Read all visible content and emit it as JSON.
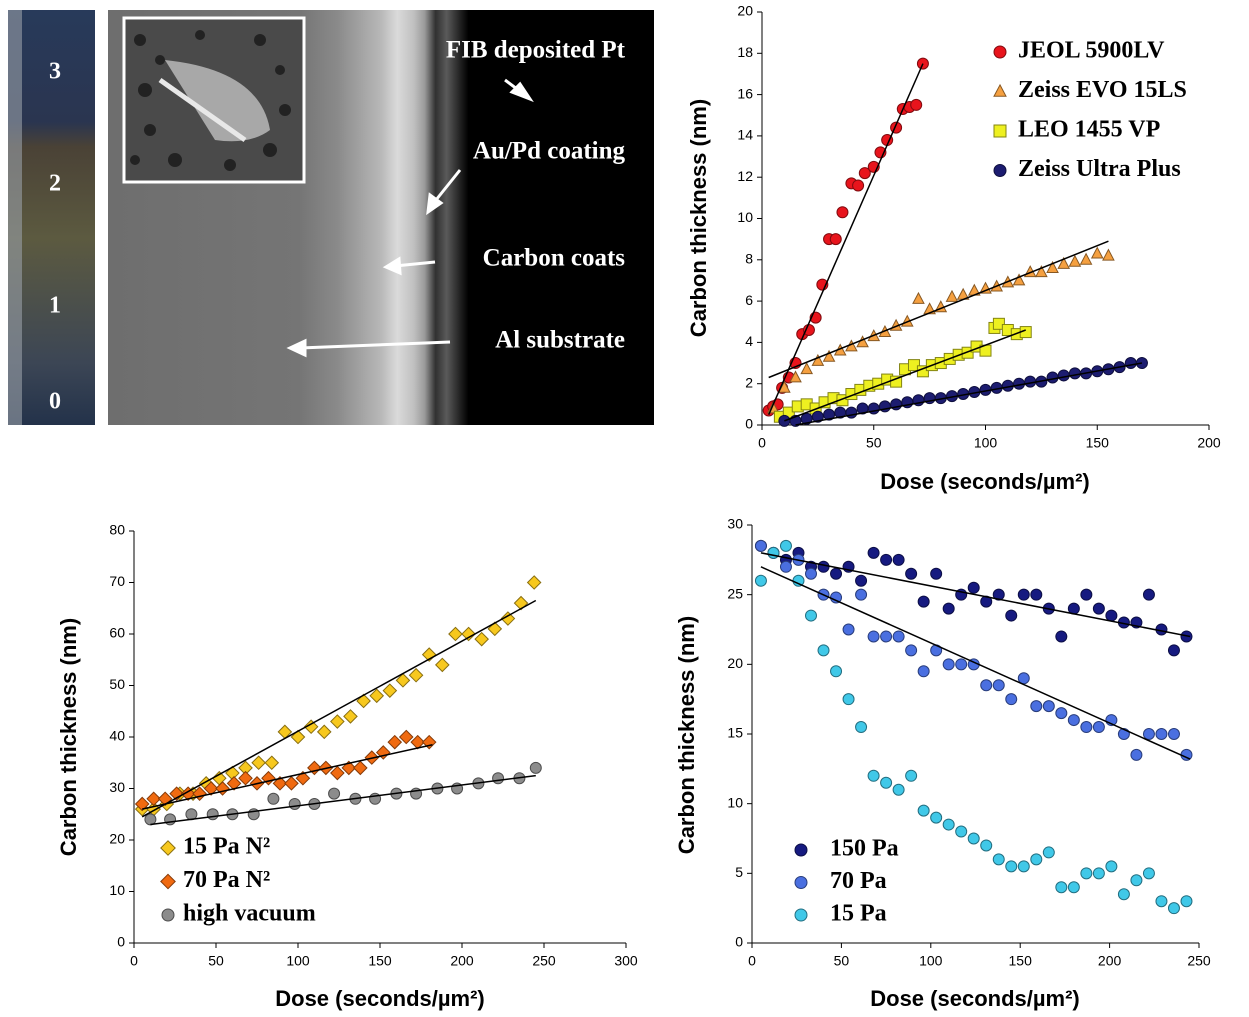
{
  "image_panel": {
    "strip_labels": [
      "3",
      "2",
      "1",
      "0"
    ],
    "annotations": [
      "FIB deposited Pt",
      "Au/Pd coating",
      "Carbon coats",
      "Al substrate"
    ]
  },
  "chart_data": [
    {
      "type": "scatter",
      "xlabel": "Dose (seconds/µm²)",
      "ylabel": "Carbon thickness (nm)",
      "xlim": [
        0,
        200
      ],
      "ylim": [
        0,
        20
      ],
      "xticks": [
        0,
        50,
        100,
        150,
        200
      ],
      "yticks": [
        0,
        2,
        4,
        6,
        8,
        10,
        12,
        14,
        16,
        18,
        20
      ],
      "grid": false,
      "legend": "upper right",
      "series": [
        {
          "name": "JEOL 5900LV",
          "color": "#e8141c",
          "marker": "circle",
          "x": [
            3,
            5,
            7,
            9,
            12,
            15,
            18,
            21,
            24,
            27,
            30,
            33,
            36,
            40,
            43,
            46,
            50,
            53,
            56,
            60,
            63,
            66,
            69,
            72
          ],
          "values": [
            0.7,
            0.9,
            1.0,
            1.8,
            2.3,
            3.0,
            4.4,
            4.6,
            5.2,
            6.8,
            9.0,
            9.0,
            10.3,
            11.7,
            11.6,
            12.2,
            12.5,
            13.2,
            13.8,
            14.4,
            15.3,
            15.4,
            15.5,
            17.5
          ],
          "trend_x": [
            3,
            72
          ],
          "trend_y": [
            0.5,
            17.5
          ]
        },
        {
          "name": "Zeiss EVO 15LS",
          "color": "#f5a040",
          "marker": "triangle",
          "x": [
            5,
            10,
            15,
            20,
            25,
            30,
            35,
            40,
            45,
            50,
            55,
            60,
            65,
            70,
            75,
            80,
            85,
            90,
            95,
            100,
            105,
            110,
            115,
            120,
            125,
            130,
            135,
            140,
            145,
            150,
            155
          ],
          "values": [
            0.8,
            1.8,
            2.3,
            2.7,
            3.1,
            3.3,
            3.6,
            3.8,
            4.0,
            4.3,
            4.5,
            4.8,
            5.0,
            6.1,
            5.6,
            5.7,
            6.2,
            6.3,
            6.5,
            6.6,
            6.7,
            6.9,
            7.0,
            7.4,
            7.4,
            7.6,
            7.8,
            7.9,
            8.0,
            8.3,
            8.2
          ],
          "trend_x": [
            3,
            155
          ],
          "trend_y": [
            2.3,
            8.9
          ]
        },
        {
          "name": "LEO 1455 VP",
          "color": "#eef020",
          "marker": "square",
          "x": [
            8,
            12,
            16,
            20,
            24,
            28,
            32,
            36,
            40,
            44,
            48,
            52,
            56,
            60,
            64,
            68,
            72,
            76,
            80,
            84,
            88,
            92,
            96,
            100,
            104,
            106,
            110,
            114,
            118
          ],
          "values": [
            0.4,
            0.6,
            0.9,
            1.0,
            0.8,
            1.1,
            1.3,
            1.2,
            1.5,
            1.7,
            1.9,
            2.0,
            2.2,
            2.1,
            2.7,
            2.9,
            2.6,
            2.9,
            3.0,
            3.2,
            3.4,
            3.5,
            3.8,
            3.6,
            4.7,
            4.9,
            4.6,
            4.4,
            4.5
          ],
          "trend_x": [
            10,
            118
          ],
          "trend_y": [
            0.2,
            4.6
          ]
        },
        {
          "name": "Zeiss Ultra Plus",
          "color": "#1c1c70",
          "marker": "circle",
          "x": [
            10,
            15,
            20,
            25,
            30,
            35,
            40,
            45,
            50,
            55,
            60,
            65,
            70,
            75,
            80,
            85,
            90,
            95,
            100,
            105,
            110,
            115,
            120,
            125,
            130,
            135,
            140,
            145,
            150,
            155,
            160,
            165,
            170
          ],
          "values": [
            0.2,
            0.2,
            0.3,
            0.4,
            0.5,
            0.6,
            0.6,
            0.8,
            0.8,
            0.9,
            1.0,
            1.1,
            1.2,
            1.3,
            1.3,
            1.4,
            1.5,
            1.6,
            1.7,
            1.8,
            1.9,
            2.0,
            2.1,
            2.1,
            2.3,
            2.4,
            2.5,
            2.5,
            2.6,
            2.7,
            2.8,
            3.0,
            3.0
          ],
          "trend_x": [
            15,
            170
          ],
          "trend_y": [
            0,
            3.0
          ]
        }
      ]
    },
    {
      "type": "scatter",
      "xlabel": "Dose (seconds/µm²)",
      "ylabel": "Carbon thickness (nm)",
      "xlim": [
        0,
        300
      ],
      "ylim": [
        0,
        80
      ],
      "xticks": [
        0,
        50,
        100,
        150,
        200,
        250,
        300
      ],
      "yticks": [
        0,
        10,
        20,
        30,
        40,
        50,
        60,
        70,
        80
      ],
      "grid": false,
      "legend": "lower left",
      "series": [
        {
          "name": "15 Pa N²",
          "color": "#f7c81e",
          "marker": "diamond",
          "x": [
            5,
            12,
            20,
            28,
            36,
            44,
            52,
            60,
            68,
            76,
            84,
            92,
            100,
            108,
            116,
            124,
            132,
            140,
            148,
            156,
            164,
            172,
            180,
            188,
            196,
            204,
            212,
            220,
            228,
            236,
            244
          ],
          "values": [
            26,
            26,
            27,
            29,
            29,
            31,
            32,
            33,
            34,
            35,
            35,
            41,
            40,
            42,
            41,
            43,
            44,
            47,
            48,
            49,
            51,
            52,
            56,
            54,
            60,
            60,
            59,
            61,
            63,
            66,
            70
          ],
          "trend_x": [
            5,
            245
          ],
          "trend_y": [
            24.5,
            66.5
          ]
        },
        {
          "name": "70 Pa N²",
          "color": "#f06a10",
          "marker": "diamond",
          "x": [
            5,
            12,
            19,
            26,
            33,
            40,
            47,
            54,
            61,
            68,
            75,
            82,
            89,
            96,
            103,
            110,
            117,
            124,
            131,
            138,
            145,
            152,
            159,
            166,
            173,
            180
          ],
          "values": [
            27,
            28,
            28,
            29,
            29,
            29,
            30,
            30,
            31,
            32,
            31,
            32,
            31,
            31,
            32,
            34,
            34,
            33,
            34,
            34,
            36,
            37,
            39,
            40,
            39,
            39
          ],
          "trend_x": [
            5,
            182
          ],
          "trend_y": [
            26,
            38.5
          ]
        },
        {
          "name": "high vacuum",
          "color": "#8c8c8c",
          "marker": "circle",
          "x": [
            10,
            22,
            35,
            48,
            60,
            73,
            85,
            98,
            110,
            122,
            135,
            147,
            160,
            172,
            185,
            197,
            210,
            222,
            235,
            245
          ],
          "values": [
            24,
            24,
            25,
            25,
            25,
            25,
            28,
            27,
            27,
            29,
            28,
            28,
            29,
            29,
            30,
            30,
            31,
            32,
            32,
            34
          ],
          "trend_x": [
            10,
            245
          ],
          "trend_y": [
            23,
            32.5
          ]
        }
      ]
    },
    {
      "type": "scatter",
      "xlabel": "Dose (seconds/µm²)",
      "ylabel": "Carbon thickness (nm)",
      "xlim": [
        0,
        250
      ],
      "ylim": [
        0,
        30
      ],
      "xticks": [
        0,
        50,
        100,
        150,
        200,
        250
      ],
      "yticks": [
        0,
        5,
        10,
        15,
        20,
        25,
        30
      ],
      "grid": false,
      "legend": "lower left",
      "series": [
        {
          "name": "150 Pa",
          "color": "#161a80",
          "marker": "circle",
          "x": [
            5,
            12,
            19,
            26,
            33,
            40,
            47,
            54,
            61,
            68,
            75,
            82,
            89,
            96,
            103,
            110,
            117,
            124,
            131,
            138,
            145,
            152,
            159,
            166,
            173,
            180,
            187,
            194,
            201,
            208,
            215,
            222,
            229,
            236,
            243
          ],
          "values": [
            28.5,
            28,
            27.5,
            28,
            27,
            27,
            26.5,
            27,
            26,
            28,
            27.5,
            27.5,
            26.5,
            24.5,
            26.5,
            24,
            25,
            25.5,
            24.5,
            25,
            23.5,
            25,
            25,
            24,
            22,
            24,
            25,
            24,
            23.5,
            23,
            23,
            25,
            22.5,
            21,
            22
          ],
          "trend_x": [
            5,
            245
          ],
          "trend_y": [
            28,
            22
          ]
        },
        {
          "name": "70 Pa",
          "color": "#4a6fe0",
          "marker": "circle",
          "x": [
            5,
            12,
            19,
            26,
            33,
            40,
            47,
            54,
            61,
            68,
            75,
            82,
            89,
            96,
            103,
            110,
            117,
            124,
            131,
            138,
            145,
            152,
            159,
            166,
            173,
            180,
            187,
            194,
            201,
            208,
            215,
            222,
            229,
            236,
            243
          ],
          "values": [
            28.5,
            28,
            27,
            27.5,
            26.5,
            25,
            24.8,
            22.5,
            25,
            22,
            22,
            22,
            21,
            19.5,
            21,
            20,
            20,
            20,
            18.5,
            18.5,
            17.5,
            19,
            17,
            17,
            16.5,
            16,
            15.5,
            15.5,
            16,
            15,
            13.5,
            15,
            15,
            15,
            13.5
          ],
          "trend_x": [
            5,
            245
          ],
          "trend_y": [
            27,
            13.2
          ]
        },
        {
          "name": "15 Pa",
          "color": "#40c8e8",
          "marker": "circle",
          "x": [
            5,
            12,
            19,
            26,
            33,
            40,
            47,
            54,
            61,
            68,
            75,
            82,
            89,
            96,
            103,
            110,
            117,
            124,
            131,
            138,
            145,
            152,
            159,
            166,
            173,
            180,
            187,
            194,
            201,
            208,
            215,
            222,
            229,
            236,
            243
          ],
          "values": [
            26,
            28,
            28.5,
            26,
            23.5,
            21,
            19.5,
            17.5,
            15.5,
            12,
            11.5,
            11,
            12,
            9.5,
            9,
            8.5,
            8,
            7.5,
            7,
            6,
            5.5,
            5.5,
            6,
            6.5,
            4,
            4,
            5,
            5,
            5.5,
            3.5,
            4.5,
            5,
            3,
            2.5,
            3
          ]
        }
      ]
    }
  ]
}
